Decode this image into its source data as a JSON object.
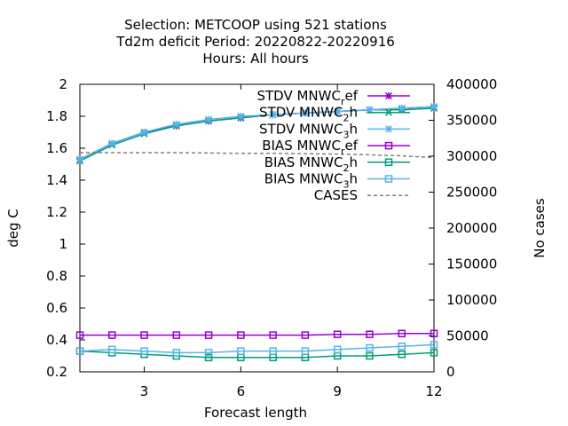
{
  "chart_data": {
    "type": "line",
    "title_lines": [
      "Selection: METCOOP using   521 stations",
      "Td2m deficit   Period: 20220822-20220916",
      "Hours:  All hours"
    ],
    "xlabel": "Forecast length",
    "ylabel": "deg C",
    "y2label": "No cases",
    "xlim": [
      1,
      12
    ],
    "ylim": [
      0.2,
      2
    ],
    "y2lim": [
      0,
      400000
    ],
    "xticks": [
      3,
      6,
      9,
      12
    ],
    "yticks": [
      0.2,
      0.4,
      0.6,
      0.8,
      1,
      1.2,
      1.4,
      1.6,
      1.8,
      2
    ],
    "y2ticks": [
      0,
      50000,
      100000,
      150000,
      200000,
      250000,
      300000,
      350000,
      400000
    ],
    "x": [
      1,
      2,
      3,
      4,
      5,
      6,
      7,
      8,
      9,
      10,
      11,
      12
    ],
    "legend_position": "top-right",
    "series": [
      {
        "name": "STDV MNWC_ref",
        "legend": [
          "STDV MNWC",
          "r",
          "ef"
        ],
        "color": "#9400d3",
        "marker": "star",
        "dash": false,
        "axis": "y",
        "values": [
          1.53,
          1.63,
          1.7,
          1.74,
          1.77,
          1.79,
          1.81,
          1.82,
          1.83,
          1.84,
          1.85,
          1.86
        ]
      },
      {
        "name": "STDV MNWC_2h",
        "legend": [
          "STDV MNWC",
          "2",
          "h"
        ],
        "color": "#009e73",
        "marker": "x",
        "dash": false,
        "axis": "y",
        "values": [
          1.52,
          1.62,
          1.69,
          1.74,
          1.77,
          1.79,
          1.81,
          1.82,
          1.83,
          1.84,
          1.84,
          1.85
        ]
      },
      {
        "name": "STDV MNWC_3h",
        "legend": [
          "STDV MNWC",
          "3",
          "h"
        ],
        "color": "#56b4e9",
        "marker": "star",
        "dash": false,
        "axis": "y",
        "values": [
          1.53,
          1.63,
          1.7,
          1.75,
          1.78,
          1.8,
          1.81,
          1.82,
          1.83,
          1.84,
          1.85,
          1.86
        ]
      },
      {
        "name": "BIAS MNWC_ref",
        "legend": [
          "BIAS MNWC",
          "r",
          "ef"
        ],
        "color": "#9400d3",
        "marker": "square",
        "dash": false,
        "axis": "y",
        "values": [
          0.43,
          0.43,
          0.43,
          0.43,
          0.43,
          0.43,
          0.43,
          0.43,
          0.435,
          0.435,
          0.44,
          0.44
        ]
      },
      {
        "name": "BIAS MNWC_2h",
        "legend": [
          "BIAS MNWC",
          "2",
          "h"
        ],
        "color": "#009e73",
        "marker": "square",
        "dash": false,
        "axis": "y",
        "values": [
          0.33,
          0.32,
          0.31,
          0.3,
          0.29,
          0.29,
          0.29,
          0.29,
          0.3,
          0.3,
          0.31,
          0.32
        ]
      },
      {
        "name": "BIAS MNWC_3h",
        "legend": [
          "BIAS MNWC",
          "3",
          "h"
        ],
        "color": "#56b4e9",
        "marker": "square",
        "dash": false,
        "axis": "y",
        "values": [
          0.33,
          0.34,
          0.33,
          0.32,
          0.32,
          0.33,
          0.33,
          0.33,
          0.34,
          0.35,
          0.36,
          0.37
        ]
      },
      {
        "name": "CASES",
        "legend": [
          "CASES",
          "",
          ""
        ],
        "color": "#808080",
        "marker": "none",
        "dash": true,
        "axis": "y2",
        "values": [
          305000,
          305000,
          305000,
          305000,
          304500,
          304000,
          304000,
          303500,
          303000,
          302000,
          300500,
          298000
        ]
      }
    ]
  }
}
